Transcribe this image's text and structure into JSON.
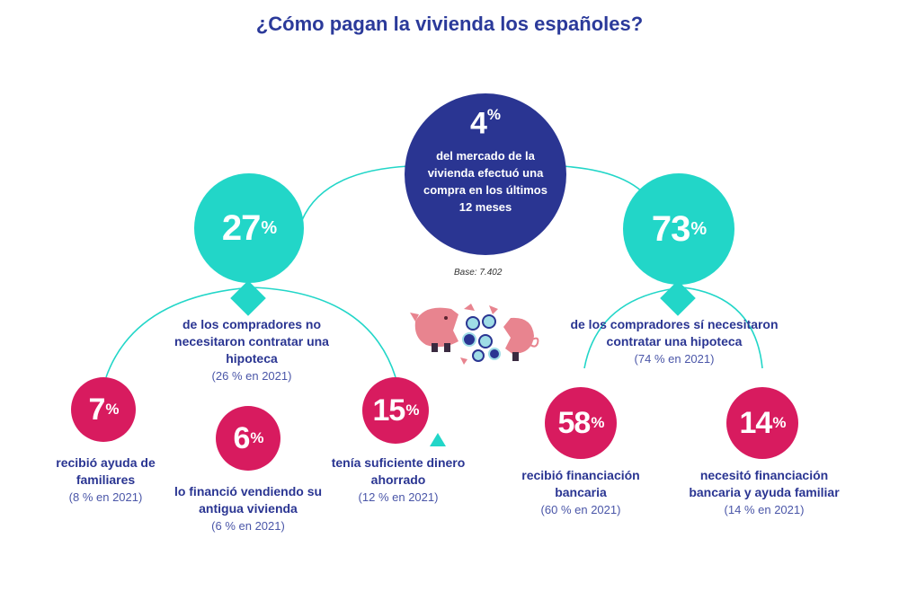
{
  "title": "¿Cómo pagan la vivienda los españoles?",
  "center": {
    "pct_value": "4",
    "pct_symbol": "%",
    "description": "del mercado de la vivienda efectuó una compra en los últimos 12 meses"
  },
  "base": "Base: 7.402",
  "left_group": {
    "pct_value": "27",
    "pct_symbol": "%",
    "label": "de los compradores no necesitaron contratar una hipoteca",
    "prior": "(26 % en 2021)"
  },
  "right_group": {
    "pct_value": "73",
    "pct_symbol": "%",
    "label": "de los compradores sí necesitaron contratar una hipoteca",
    "prior": "(74 % en 2021)"
  },
  "items": [
    {
      "pct_value": "7",
      "pct_symbol": "%",
      "label": "recibió ayuda de familiares",
      "prior": "(8 % en 2021)"
    },
    {
      "pct_value": "6",
      "pct_symbol": "%",
      "label": "lo financió vendiendo su antigua vivienda",
      "prior": "(6 % en 2021)"
    },
    {
      "pct_value": "15",
      "pct_symbol": "%",
      "label": "tenía suficiente dinero ahorrado",
      "prior": "(12 % en 2021)"
    },
    {
      "pct_value": "58",
      "pct_symbol": "%",
      "label": "recibió financiación bancaria",
      "prior": "(60 % en 2021)"
    },
    {
      "pct_value": "14",
      "pct_symbol": "%",
      "label": "necesitó financiación bancaria y ayuda familiar",
      "prior": "(14 % en 2021)"
    }
  ],
  "colors": {
    "navy": "#2a3592",
    "teal": "#22d6c8",
    "pink": "#d81b5f",
    "title": "#2b3a9a"
  },
  "icons": [
    "piggy-bank-icon",
    "coins-icon",
    "triangle-icon"
  ]
}
